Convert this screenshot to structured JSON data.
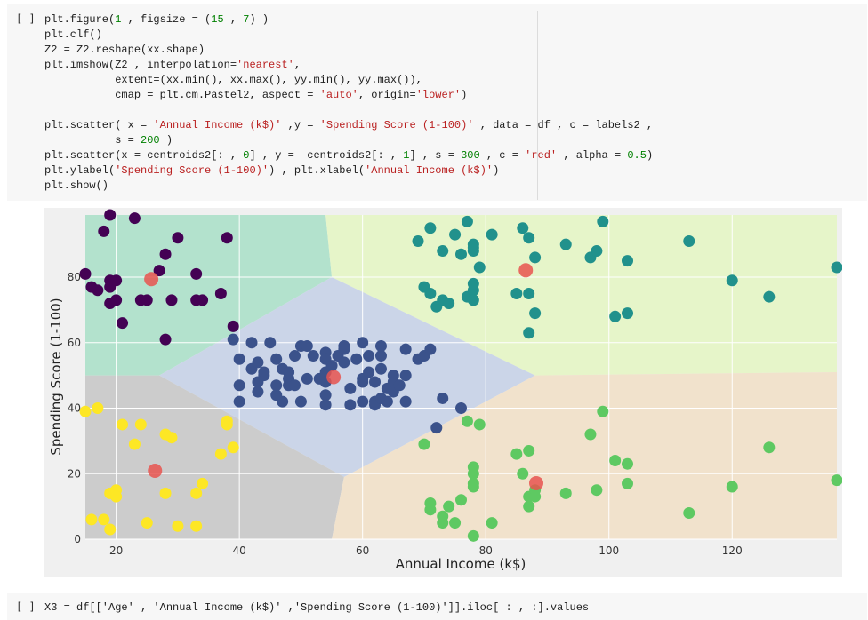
{
  "cell1": {
    "prompt": "[ ]",
    "code_lines": [
      [
        {
          "t": "plt.figure("
        },
        {
          "t": "1",
          "k": "n"
        },
        {
          "t": " , figsize = ("
        },
        {
          "t": "15",
          "k": "n"
        },
        {
          "t": " , "
        },
        {
          "t": "7",
          "k": "n"
        },
        {
          "t": ") )"
        }
      ],
      [
        {
          "t": "plt.clf()"
        }
      ],
      [
        {
          "t": "Z2 = Z2.reshape(xx.shape)"
        }
      ],
      [
        {
          "t": "plt.imshow(Z2 , interpolation="
        },
        {
          "t": "'nearest'",
          "k": "s"
        },
        {
          "t": ","
        }
      ],
      [
        {
          "t": "           extent=(xx.min(), xx.max(), yy.min(), yy.max()),"
        }
      ],
      [
        {
          "t": "           cmap = plt.cm.Pastel2, aspect = "
        },
        {
          "t": "'auto'",
          "k": "s"
        },
        {
          "t": ", origin="
        },
        {
          "t": "'lower'",
          "k": "s"
        },
        {
          "t": ")"
        }
      ],
      [
        {
          "t": ""
        }
      ],
      [
        {
          "t": "plt.scatter( x = "
        },
        {
          "t": "'Annual Income (k$)'",
          "k": "s"
        },
        {
          "t": " ,y = "
        },
        {
          "t": "'Spending Score (1-100)'",
          "k": "s"
        },
        {
          "t": " , data = df , c = labels2 ,"
        }
      ],
      [
        {
          "t": "           s = "
        },
        {
          "t": "200",
          "k": "n"
        },
        {
          "t": " )"
        }
      ],
      [
        {
          "t": "plt.scatter(x = centroids2[: , "
        },
        {
          "t": "0",
          "k": "n"
        },
        {
          "t": "] , y =  centroids2[: , "
        },
        {
          "t": "1",
          "k": "n"
        },
        {
          "t": "] , s = "
        },
        {
          "t": "300",
          "k": "n"
        },
        {
          "t": " , c = "
        },
        {
          "t": "'red'",
          "k": "s"
        },
        {
          "t": " , alpha = "
        },
        {
          "t": "0.5",
          "k": "n"
        },
        {
          "t": ")"
        }
      ],
      [
        {
          "t": "plt.ylabel("
        },
        {
          "t": "'Spending Score (1-100)'",
          "k": "s"
        },
        {
          "t": ") , plt.xlabel("
        },
        {
          "t": "'Annual Income (k$)'",
          "k": "s"
        },
        {
          "t": ")"
        }
      ],
      [
        {
          "t": "plt.show()"
        }
      ]
    ]
  },
  "cell2": {
    "prompt": "[ ]",
    "code_partial": "X3 = df[['Age' , 'Annual Income (k$)' ,'Spending Score (1-100)']].iloc[ : , :].values"
  },
  "colors": {
    "background": "#f0f0f0",
    "grid": "#ffffff",
    "region_purple_cluster": "#b3e2cd",
    "region_teal_cluster": "#e6f5c9",
    "region_center_cluster": "#cbd5e8",
    "region_yellow_cluster": "#cccccc",
    "region_green_cluster": "#f1e2cc",
    "cluster_purple": "#440154",
    "cluster_blue": "#3b528b",
    "cluster_teal": "#21918c",
    "cluster_green": "#5ec962",
    "cluster_yellow": "#fde725",
    "centroid": "#e8534f"
  },
  "chart_data": {
    "type": "scatter",
    "title": "",
    "xlabel": "Annual Income (k$)",
    "ylabel": "Spending Score (1-100)",
    "xlim": [
      15,
      137
    ],
    "ylim": [
      0,
      99
    ],
    "xticks": [
      20,
      40,
      60,
      80,
      100,
      120
    ],
    "yticks": [
      0,
      20,
      40,
      60,
      80
    ],
    "grid": true,
    "regions": [
      {
        "cluster": "purple",
        "color": "region_purple_cluster",
        "polygon": [
          [
            15,
            50
          ],
          [
            27,
            50
          ],
          [
            55,
            80
          ],
          [
            54,
            99
          ],
          [
            15,
            99
          ]
        ]
      },
      {
        "cluster": "teal",
        "color": "region_teal_cluster",
        "polygon": [
          [
            54,
            99
          ],
          [
            137,
            99
          ],
          [
            137,
            51
          ],
          [
            88,
            50
          ],
          [
            55,
            80
          ]
        ]
      },
      {
        "cluster": "center",
        "color": "region_center_cluster",
        "polygon": [
          [
            27,
            50
          ],
          [
            55,
            80
          ],
          [
            88,
            50
          ],
          [
            57,
            19
          ]
        ]
      },
      {
        "cluster": "yellow",
        "color": "region_yellow_cluster",
        "polygon": [
          [
            15,
            50
          ],
          [
            27,
            50
          ],
          [
            57,
            19
          ],
          [
            55,
            0
          ],
          [
            15,
            0
          ]
        ]
      },
      {
        "cluster": "green",
        "color": "region_green_cluster",
        "polygon": [
          [
            57,
            19
          ],
          [
            88,
            50
          ],
          [
            137,
            51
          ],
          [
            137,
            0
          ],
          [
            55,
            0
          ]
        ]
      }
    ],
    "series": [
      {
        "color": "cluster_purple",
        "points": [
          [
            15,
            81
          ],
          [
            16,
            77
          ],
          [
            17,
            76
          ],
          [
            19,
            79
          ],
          [
            19,
            77
          ],
          [
            20,
            79
          ],
          [
            20,
            73
          ],
          [
            19,
            72
          ],
          [
            21,
            66
          ],
          [
            23,
            98
          ],
          [
            24,
            73
          ],
          [
            25,
            73
          ],
          [
            27,
            82
          ],
          [
            28,
            87
          ],
          [
            28,
            61
          ],
          [
            29,
            73
          ],
          [
            30,
            92
          ],
          [
            33,
            81
          ],
          [
            33,
            73
          ],
          [
            34,
            73
          ],
          [
            37,
            75
          ],
          [
            38,
            92
          ],
          [
            39,
            65
          ],
          [
            19,
            99
          ],
          [
            18,
            94
          ]
        ]
      },
      {
        "color": "cluster_blue",
        "points": [
          [
            39,
            61
          ],
          [
            40,
            55
          ],
          [
            40,
            47
          ],
          [
            40,
            42
          ],
          [
            42,
            52
          ],
          [
            42,
            60
          ],
          [
            43,
            54
          ],
          [
            43,
            48
          ],
          [
            43,
            45
          ],
          [
            44,
            50
          ],
          [
            44,
            51
          ],
          [
            45,
            60
          ],
          [
            46,
            44
          ],
          [
            46,
            55
          ],
          [
            46,
            47
          ],
          [
            47,
            52
          ],
          [
            47,
            42
          ],
          [
            48,
            51
          ],
          [
            48,
            49
          ],
          [
            48,
            47
          ],
          [
            48,
            51
          ],
          [
            49,
            56
          ],
          [
            49,
            47
          ],
          [
            50,
            59
          ],
          [
            50,
            42
          ],
          [
            51,
            49
          ],
          [
            51,
            59
          ],
          [
            52,
            56
          ],
          [
            53,
            49
          ],
          [
            54,
            57
          ],
          [
            54,
            51
          ],
          [
            54,
            55
          ],
          [
            54,
            48
          ],
          [
            54,
            44
          ],
          [
            54,
            41
          ],
          [
            55,
            53
          ],
          [
            56,
            56
          ],
          [
            57,
            58
          ],
          [
            57,
            59
          ],
          [
            57,
            54
          ],
          [
            58,
            46
          ],
          [
            58,
            41
          ],
          [
            59,
            55
          ],
          [
            60,
            48
          ],
          [
            60,
            49
          ],
          [
            60,
            42
          ],
          [
            60,
            60
          ],
          [
            61,
            56
          ],
          [
            61,
            51
          ],
          [
            62,
            48
          ],
          [
            62,
            41
          ],
          [
            62,
            42
          ],
          [
            63,
            52
          ],
          [
            63,
            43
          ],
          [
            63,
            56
          ],
          [
            63,
            59
          ],
          [
            64,
            42
          ],
          [
            64,
            46
          ],
          [
            65,
            50
          ],
          [
            65,
            48
          ],
          [
            65,
            45
          ],
          [
            66,
            47
          ],
          [
            67,
            42
          ],
          [
            67,
            58
          ],
          [
            67,
            50
          ],
          [
            69,
            55
          ],
          [
            70,
            56
          ],
          [
            71,
            58
          ],
          [
            72,
            34
          ],
          [
            73,
            43
          ],
          [
            76,
            40
          ]
        ]
      },
      {
        "color": "cluster_teal",
        "points": [
          [
            69,
            91
          ],
          [
            70,
            77
          ],
          [
            71,
            95
          ],
          [
            71,
            75
          ],
          [
            72,
            71
          ],
          [
            73,
            88
          ],
          [
            73,
            73
          ],
          [
            74,
            72
          ],
          [
            75,
            93
          ],
          [
            76,
            87
          ],
          [
            77,
            97
          ],
          [
            77,
            74
          ],
          [
            78,
            90
          ],
          [
            78,
            88
          ],
          [
            78,
            76
          ],
          [
            78,
            89
          ],
          [
            78,
            78
          ],
          [
            78,
            73
          ],
          [
            79,
            83
          ],
          [
            81,
            93
          ],
          [
            85,
            75
          ],
          [
            86,
            95
          ],
          [
            87,
            75
          ],
          [
            87,
            92
          ],
          [
            87,
            63
          ],
          [
            88,
            86
          ],
          [
            88,
            69
          ],
          [
            93,
            90
          ],
          [
            97,
            86
          ],
          [
            98,
            88
          ],
          [
            99,
            97
          ],
          [
            101,
            68
          ],
          [
            103,
            85
          ],
          [
            103,
            69
          ],
          [
            113,
            91
          ],
          [
            120,
            79
          ],
          [
            126,
            74
          ],
          [
            137,
            83
          ]
        ]
      },
      {
        "color": "cluster_green",
        "points": [
          [
            70,
            29
          ],
          [
            71,
            11
          ],
          [
            71,
            9
          ],
          [
            73,
            5
          ],
          [
            73,
            7
          ],
          [
            74,
            10
          ],
          [
            75,
            5
          ],
          [
            76,
            12
          ],
          [
            77,
            36
          ],
          [
            78,
            22
          ],
          [
            78,
            17
          ],
          [
            78,
            20
          ],
          [
            78,
            16
          ],
          [
            78,
            1
          ],
          [
            79,
            35
          ],
          [
            81,
            5
          ],
          [
            85,
            26
          ],
          [
            86,
            20
          ],
          [
            87,
            27
          ],
          [
            87,
            13
          ],
          [
            87,
            10
          ],
          [
            88,
            13
          ],
          [
            88,
            15
          ],
          [
            93,
            14
          ],
          [
            97,
            32
          ],
          [
            98,
            15
          ],
          [
            99,
            39
          ],
          [
            101,
            24
          ],
          [
            103,
            17
          ],
          [
            103,
            23
          ],
          [
            113,
            8
          ],
          [
            120,
            16
          ],
          [
            126,
            28
          ],
          [
            137,
            18
          ]
        ]
      },
      {
        "color": "cluster_yellow",
        "points": [
          [
            15,
            39
          ],
          [
            16,
            6
          ],
          [
            17,
            40
          ],
          [
            18,
            6
          ],
          [
            19,
            3
          ],
          [
            19,
            14
          ],
          [
            20,
            15
          ],
          [
            20,
            13
          ],
          [
            21,
            35
          ],
          [
            23,
            29
          ],
          [
            24,
            35
          ],
          [
            25,
            5
          ],
          [
            28,
            14
          ],
          [
            28,
            32
          ],
          [
            29,
            31
          ],
          [
            30,
            4
          ],
          [
            33,
            4
          ],
          [
            33,
            14
          ],
          [
            34,
            17
          ],
          [
            37,
            26
          ],
          [
            38,
            35
          ],
          [
            38,
            36
          ],
          [
            39,
            28
          ]
        ]
      }
    ],
    "centroids": [
      [
        25.7,
        79.4
      ],
      [
        55.3,
        49.5
      ],
      [
        86.5,
        82.1
      ],
      [
        88.2,
        17.1
      ],
      [
        26.3,
        20.9
      ]
    ]
  }
}
